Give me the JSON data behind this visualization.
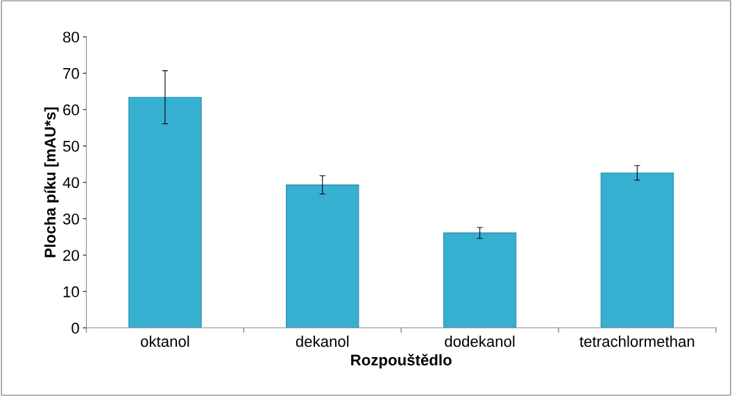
{
  "chart_data": {
    "type": "bar",
    "xlabel": "Rozpouštědlo",
    "ylabel": "Plocha píku [mAU*s]",
    "categories": [
      "oktanol",
      "dekanol",
      "dodekanol",
      "tetrachlormethan"
    ],
    "values": [
      63.4,
      39.3,
      26.1,
      42.6
    ],
    "errors": [
      7.3,
      2.5,
      1.5,
      2.0
    ],
    "color": "#36afd0",
    "ylim": [
      0,
      80
    ],
    "yticks": [
      0,
      10,
      20,
      30,
      40,
      50,
      60,
      70,
      80
    ],
    "grid": false,
    "legend": false
  }
}
